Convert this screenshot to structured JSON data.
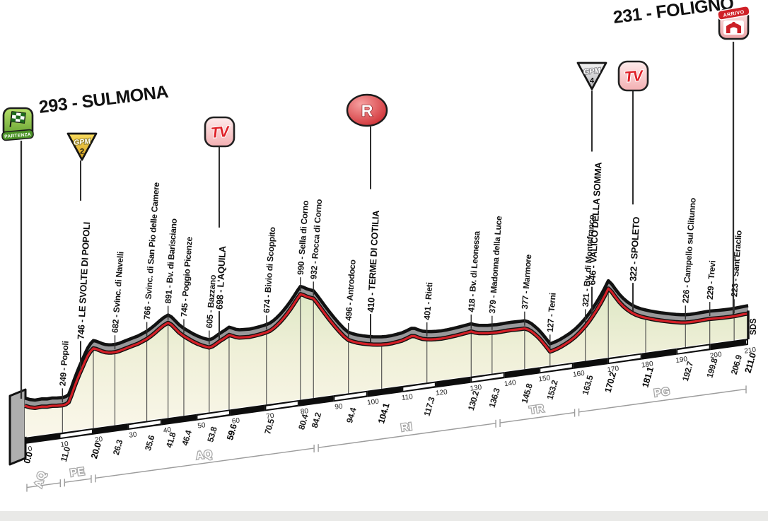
{
  "header": {
    "start_title": "293 - SULMONA",
    "finish_title": "231 - FOLIGNO"
  },
  "icons": {
    "partenza": "PARTENZA",
    "arrivo": "ARRIVO",
    "gpm": "GPM",
    "gpm2_category": "2",
    "gpm4_category": "4",
    "tv": "TV",
    "refreshment": "R",
    "sds": "SDS"
  },
  "colors": {
    "road_red": "#d41f26",
    "band_gray": "#98989a",
    "edge_black": "#121212",
    "cream_top": "#dde7c4",
    "cream_mid": "#f0f0d9",
    "cream_bottom": "#faf7ea",
    "gold": "#eec23a",
    "silver": "#d9d9dc",
    "green": "#6fb43c",
    "province_gray": "#9c9c9c"
  },
  "chart_data": {
    "type": "area",
    "title": "Stage altimetry: 293 - SULMONA to 231 - FOLIGNO",
    "total_km": 211.0,
    "elevation_unit": "m",
    "km_ticks": [
      0,
      10,
      20,
      30,
      40,
      50,
      60,
      70,
      80,
      90,
      100,
      110,
      120,
      130,
      140,
      150,
      160,
      170,
      180,
      190,
      200,
      210
    ],
    "waypoints": [
      {
        "km": 0.0,
        "km_text": "0.0",
        "elevation_m": 293,
        "label": null,
        "icon": "partenza",
        "bold": true
      },
      {
        "km": 11.0,
        "km_text": "11.0",
        "elevation_m": 249,
        "label": "249 - Popoli",
        "bold": false
      },
      {
        "km": 20.0,
        "km_text": "20.0",
        "elevation_m": 746,
        "label": "746 - LE SVOLTE DI POPOLI",
        "icon": "gpm2",
        "bold": true
      },
      {
        "km": 26.3,
        "km_text": "26.3",
        "elevation_m": 682,
        "label": "682 - Svinc. di Navelli",
        "bold": false
      },
      {
        "km": 35.6,
        "km_text": "35.6",
        "elevation_m": 766,
        "label": "766 - Svinc. di San Pio delle Camere",
        "bold": false
      },
      {
        "km": 41.8,
        "km_text": "41.8",
        "elevation_m": 891,
        "label": "891 - Bv. di Barisciano",
        "bold": false
      },
      {
        "km": 46.4,
        "km_text": "46.4",
        "elevation_m": 745,
        "label": "745 - Poggio Picenze",
        "bold": false
      },
      {
        "km": 53.8,
        "km_text": "53.8",
        "elevation_m": 605,
        "label": "605 - Bazzano",
        "bold": false
      },
      {
        "km": 59.6,
        "km_text": "59.6",
        "elevation_m": 698,
        "label": "698 - L'AQUILA",
        "icon": "tv",
        "bold": true
      },
      {
        "km": 70.5,
        "km_text": "70.5",
        "elevation_m": 674,
        "label": "674 - Bivio di Scoppito",
        "bold": false
      },
      {
        "km": 80.4,
        "km_text": "80.4",
        "elevation_m": 990,
        "label": "990 - Sella di Corno",
        "bold": false
      },
      {
        "km": 84.2,
        "km_text": "84.2",
        "elevation_m": 932,
        "label": "932 - Rocca di Corno",
        "bold": false
      },
      {
        "km": 94.4,
        "km_text": "94.4",
        "elevation_m": 496,
        "label": "496 - Antrodoco",
        "bold": false
      },
      {
        "km": 104.1,
        "km_text": "104.1",
        "elevation_m": 410,
        "label": "410 - TERME DI COTILIA",
        "icon": "r",
        "bold": true
      },
      {
        "km": 117.3,
        "km_text": "117.3",
        "elevation_m": 401,
        "label": "401 - Rieti",
        "bold": false
      },
      {
        "km": 130.2,
        "km_text": "130.2",
        "elevation_m": 418,
        "label": "418 - Bv. di Leonessa",
        "bold": false
      },
      {
        "km": 136.3,
        "km_text": "136.3",
        "elevation_m": 379,
        "label": "379 - Madonna della Luce",
        "bold": false
      },
      {
        "km": 145.8,
        "km_text": "145.8",
        "elevation_m": 377,
        "label": "377 - Marmore",
        "bold": false
      },
      {
        "km": 153.2,
        "km_text": "153.2",
        "elevation_m": 127,
        "label": "127 - Terni",
        "bold": false
      },
      {
        "km": 163.5,
        "km_text": "163.5",
        "elevation_m": 321,
        "label": "321 - Bv. di Montefranco",
        "bold": false
      },
      {
        "km": 170.2,
        "km_text": "170.2",
        "elevation_m": 646,
        "label": "646 - VALICO DELLA SOMMA",
        "icon": "gpm4",
        "bold": true
      },
      {
        "km": 181.1,
        "km_text": "181.1",
        "elevation_m": 322,
        "label": "322 - SPOLETO",
        "icon": "tv2",
        "bold": true
      },
      {
        "km": 192.7,
        "km_text": "192.7",
        "elevation_m": 226,
        "label": "226 - Campello sul Clitunno",
        "bold": false
      },
      {
        "km": 199.8,
        "km_text": "199.8",
        "elevation_m": 229,
        "label": "229 - Trevi",
        "bold": false
      },
      {
        "km": 206.9,
        "km_text": "206.9",
        "elevation_m": 223,
        "label": "223 - Sant'Eraclio",
        "bold": false
      },
      {
        "km": 211.0,
        "km_text": "211.0",
        "elevation_m": 231,
        "label": null,
        "icon": "arrivo",
        "bold": true
      }
    ],
    "provinces": [
      {
        "code": "AQ",
        "from_km": 0,
        "to_km": 11
      },
      {
        "code": "PE",
        "from_km": 11,
        "to_km": 20
      },
      {
        "code": "AQ",
        "from_km": 20,
        "to_km": 85
      },
      {
        "code": "RI",
        "from_km": 85,
        "to_km": 138
      },
      {
        "code": "TR",
        "from_km": 138,
        "to_km": 161
      },
      {
        "code": "PG",
        "from_km": 161,
        "to_km": 211
      }
    ],
    "shape_points": [
      [
        0,
        293
      ],
      [
        1.5,
        272
      ],
      [
        3,
        260
      ],
      [
        5,
        263
      ],
      [
        6.5,
        256
      ],
      [
        8,
        258
      ],
      [
        9.5,
        252
      ],
      [
        11,
        249
      ],
      [
        12,
        254
      ],
      [
        12.8,
        270
      ],
      [
        13.6,
        330
      ],
      [
        14.4,
        400
      ],
      [
        15.2,
        465
      ],
      [
        16,
        525
      ],
      [
        16.8,
        580
      ],
      [
        17.6,
        635
      ],
      [
        18.4,
        685
      ],
      [
        19.2,
        722
      ],
      [
        20,
        746
      ],
      [
        20.8,
        737
      ],
      [
        21.6,
        724
      ],
      [
        22.5,
        708
      ],
      [
        23.5,
        694
      ],
      [
        24.5,
        686
      ],
      [
        25.4,
        683
      ],
      [
        26.3,
        682
      ],
      [
        27.5,
        687
      ],
      [
        29,
        700
      ],
      [
        31,
        716
      ],
      [
        33,
        732
      ],
      [
        34.3,
        748
      ],
      [
        35.6,
        766
      ],
      [
        36.8,
        788
      ],
      [
        38,
        814
      ],
      [
        39.2,
        844
      ],
      [
        40.5,
        872
      ],
      [
        41.8,
        891
      ],
      [
        42.8,
        868
      ],
      [
        43.8,
        830
      ],
      [
        45,
        785
      ],
      [
        46.4,
        745
      ],
      [
        47.6,
        716
      ],
      [
        49,
        683
      ],
      [
        50.5,
        653
      ],
      [
        52,
        628
      ],
      [
        53.8,
        605
      ],
      [
        54.8,
        612
      ],
      [
        55.8,
        630
      ],
      [
        56.8,
        650
      ],
      [
        58.2,
        672
      ],
      [
        59.6,
        698
      ],
      [
        60.6,
        684
      ],
      [
        61.6,
        668
      ],
      [
        62.6,
        660
      ],
      [
        64,
        656
      ],
      [
        65.5,
        653
      ],
      [
        67,
        657
      ],
      [
        68.5,
        663
      ],
      [
        69.5,
        668
      ],
      [
        70.5,
        674
      ],
      [
        71.5,
        684
      ],
      [
        72.5,
        702
      ],
      [
        73.5,
        726
      ],
      [
        74.5,
        754
      ],
      [
        75.5,
        786
      ],
      [
        76.5,
        822
      ],
      [
        77.5,
        862
      ],
      [
        78.5,
        906
      ],
      [
        79.5,
        952
      ],
      [
        80.4,
        990
      ],
      [
        81.3,
        978
      ],
      [
        82.2,
        960
      ],
      [
        83.2,
        945
      ],
      [
        84.2,
        932
      ],
      [
        85.2,
        888
      ],
      [
        86.4,
        830
      ],
      [
        87.6,
        772
      ],
      [
        89,
        706
      ],
      [
        90.4,
        644
      ],
      [
        91.8,
        586
      ],
      [
        93.1,
        536
      ],
      [
        94.4,
        496
      ],
      [
        95.6,
        477
      ],
      [
        97,
        459
      ],
      [
        98.5,
        444
      ],
      [
        100,
        432
      ],
      [
        101.5,
        422
      ],
      [
        102.8,
        415
      ],
      [
        104.1,
        410
      ],
      [
        105.5,
        407
      ],
      [
        107,
        409
      ],
      [
        108.5,
        414
      ],
      [
        110,
        421
      ],
      [
        111.5,
        436
      ],
      [
        112.8,
        452
      ],
      [
        113.8,
        446
      ],
      [
        114.8,
        428
      ],
      [
        116,
        411
      ],
      [
        117.3,
        401
      ],
      [
        118.6,
        395
      ],
      [
        120,
        391
      ],
      [
        121.5,
        389
      ],
      [
        123,
        391
      ],
      [
        124.5,
        395
      ],
      [
        126,
        400
      ],
      [
        127.5,
        406
      ],
      [
        129,
        412
      ],
      [
        130.2,
        418
      ],
      [
        131.2,
        404
      ],
      [
        132.4,
        393
      ],
      [
        133.8,
        386
      ],
      [
        135,
        381
      ],
      [
        136.3,
        379
      ],
      [
        137.6,
        376
      ],
      [
        139,
        377
      ],
      [
        140.5,
        379
      ],
      [
        142,
        380
      ],
      [
        143.5,
        378
      ],
      [
        144.6,
        377
      ],
      [
        145.8,
        377
      ],
      [
        146.8,
        363
      ],
      [
        147.8,
        340
      ],
      [
        148.8,
        310
      ],
      [
        149.8,
        276
      ],
      [
        150.8,
        236
      ],
      [
        151.8,
        192
      ],
      [
        152.6,
        155
      ],
      [
        153.2,
        127
      ],
      [
        154,
        132
      ],
      [
        155,
        142
      ],
      [
        156.2,
        156
      ],
      [
        157.5,
        175
      ],
      [
        159,
        201
      ],
      [
        160.5,
        233
      ],
      [
        162,
        273
      ],
      [
        163.5,
        321
      ],
      [
        164.7,
        366
      ],
      [
        165.8,
        414
      ],
      [
        166.9,
        464
      ],
      [
        168,
        518
      ],
      [
        169.1,
        580
      ],
      [
        170.2,
        646
      ],
      [
        171.2,
        610
      ],
      [
        172.2,
        560
      ],
      [
        173.4,
        505
      ],
      [
        174.6,
        459
      ],
      [
        175.8,
        421
      ],
      [
        177,
        389
      ],
      [
        178.3,
        362
      ],
      [
        179.7,
        340
      ],
      [
        181.1,
        322
      ],
      [
        182.5,
        306
      ],
      [
        184,
        291
      ],
      [
        185.5,
        277
      ],
      [
        187,
        264
      ],
      [
        188.5,
        252
      ],
      [
        190,
        241
      ],
      [
        191.4,
        232
      ],
      [
        192.7,
        226
      ],
      [
        194,
        224
      ],
      [
        195.5,
        224
      ],
      [
        197,
        226
      ],
      [
        198.4,
        228
      ],
      [
        199.8,
        229
      ],
      [
        201,
        227
      ],
      [
        202.4,
        225
      ],
      [
        204,
        223
      ],
      [
        205.5,
        222
      ],
      [
        206.9,
        223
      ],
      [
        208.2,
        226
      ],
      [
        209.6,
        229
      ],
      [
        211,
        231
      ]
    ]
  }
}
